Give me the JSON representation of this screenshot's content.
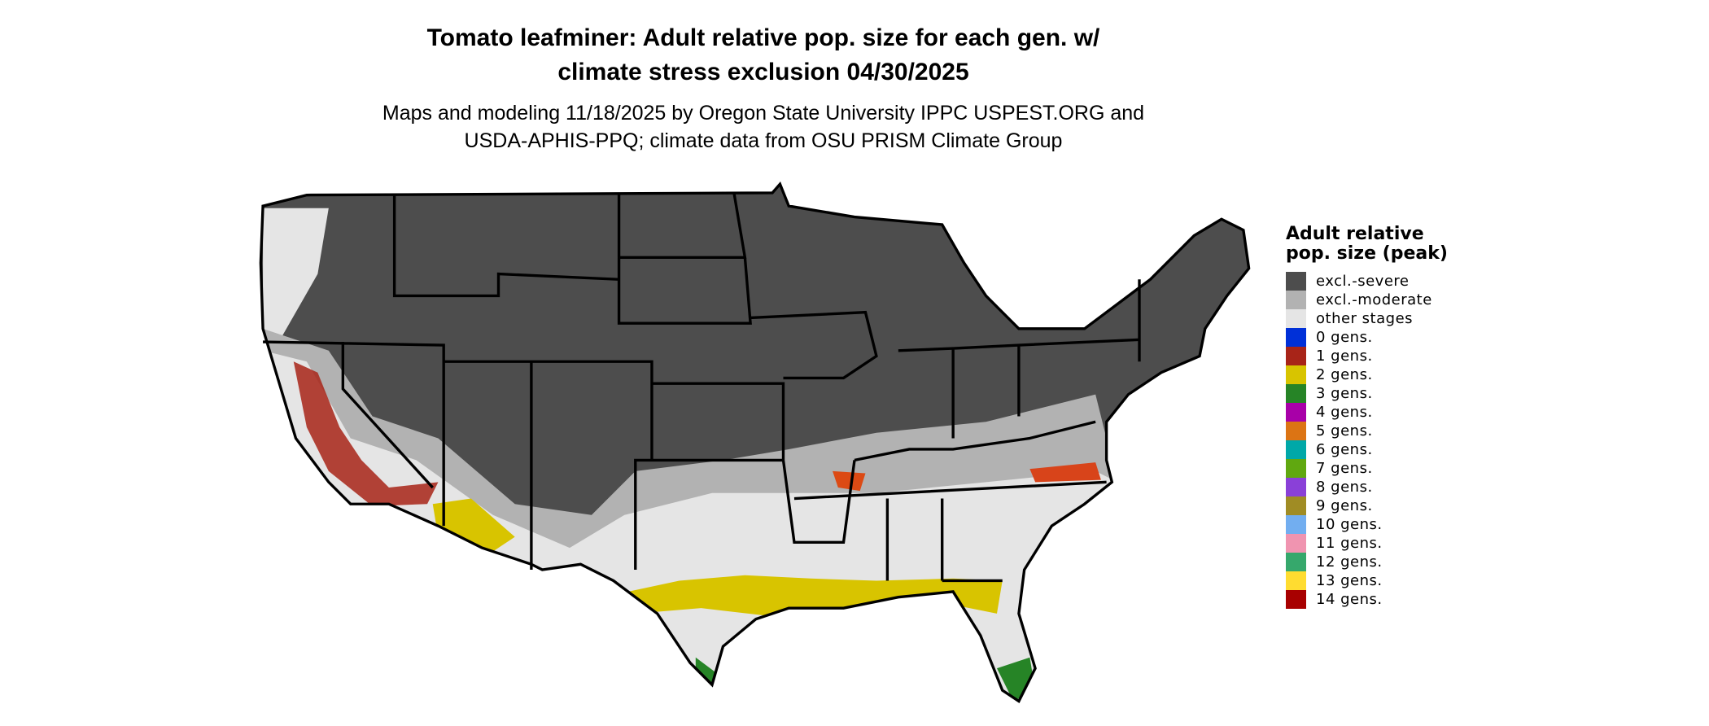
{
  "title_line1": "Tomato leafminer: Adult relative pop. size for each gen. w/",
  "title_line2": "climate stress exclusion 04/30/2025",
  "subtitle_line1": "Maps and modeling 11/18/2025 by Oregon State University IPPC USPEST.ORG and",
  "subtitle_line2": "USDA-APHIS-PPQ; climate data from OSU PRISM Climate Group",
  "legend": {
    "title": "Adult relative pop. size (peak)",
    "items": [
      {
        "label": "excl.-severe",
        "color": "#4d4d4d"
      },
      {
        "label": "excl.-moderate",
        "color": "#b2b2b2"
      },
      {
        "label": "other stages",
        "color": "#e5e5e5"
      },
      {
        "label": "0 gens.",
        "color": "#0030d8"
      },
      {
        "label": "1 gens.",
        "color": "#a82418"
      },
      {
        "label": "2 gens.",
        "color": "#d8c400"
      },
      {
        "label": "3 gens.",
        "color": "#268426"
      },
      {
        "label": "4 gens.",
        "color": "#a800a8"
      },
      {
        "label": "5 gens.",
        "color": "#dc7414"
      },
      {
        "label": "6 gens.",
        "color": "#00a8a8"
      },
      {
        "label": "7 gens.",
        "color": "#60a810"
      },
      {
        "label": "8 gens.",
        "color": "#8a40d8"
      },
      {
        "label": "9 gens.",
        "color": "#a08c24"
      },
      {
        "label": "10 gens.",
        "color": "#72aef0"
      },
      {
        "label": "11 gens.",
        "color": "#f094b0"
      },
      {
        "label": "12 gens.",
        "color": "#36a86c"
      },
      {
        "label": "13 gens.",
        "color": "#ffdc30"
      },
      {
        "label": "14 gens.",
        "color": "#a80000"
      }
    ]
  }
}
